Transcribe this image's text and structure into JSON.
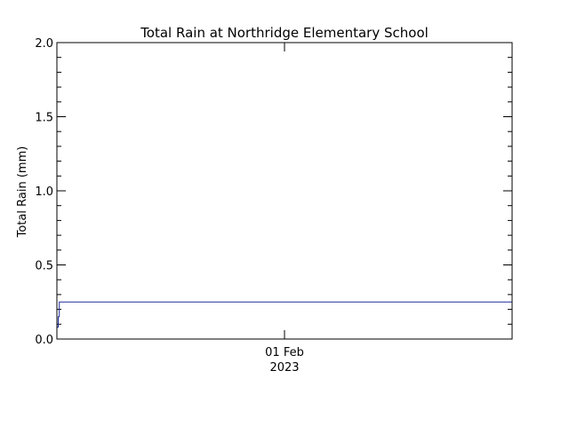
{
  "chart_data": {
    "type": "line",
    "title": "Total Rain at Northridge Elementary School",
    "ylabel": "Total Rain (mm)",
    "xlabel": "",
    "ylim": [
      0,
      2
    ],
    "yticks": [
      "0.0",
      "0.5",
      "1.0",
      "1.5",
      "2.0"
    ],
    "ytick_values": [
      0,
      0.5,
      1.0,
      1.5,
      2.0
    ],
    "xlim": [
      "2023-01-29",
      "2023-02-04"
    ],
    "xticks": [
      {
        "date": "2023-02-01",
        "label": "01 Feb",
        "sublabel": "2023"
      }
    ],
    "series": [
      {
        "x": [
          "2023-01-29 00:00",
          "2023-01-29 00:25",
          "2023-01-29 00:25",
          "2023-01-29 00:45",
          "2023-01-29 00:45",
          "2023-02-04 00:00"
        ],
        "y": [
          0.08,
          0.08,
          0.15,
          0.15,
          0.25,
          0.25
        ]
      }
    ],
    "colors": {
      "line": "#1f2b9a",
      "frame": "#000000"
    }
  }
}
